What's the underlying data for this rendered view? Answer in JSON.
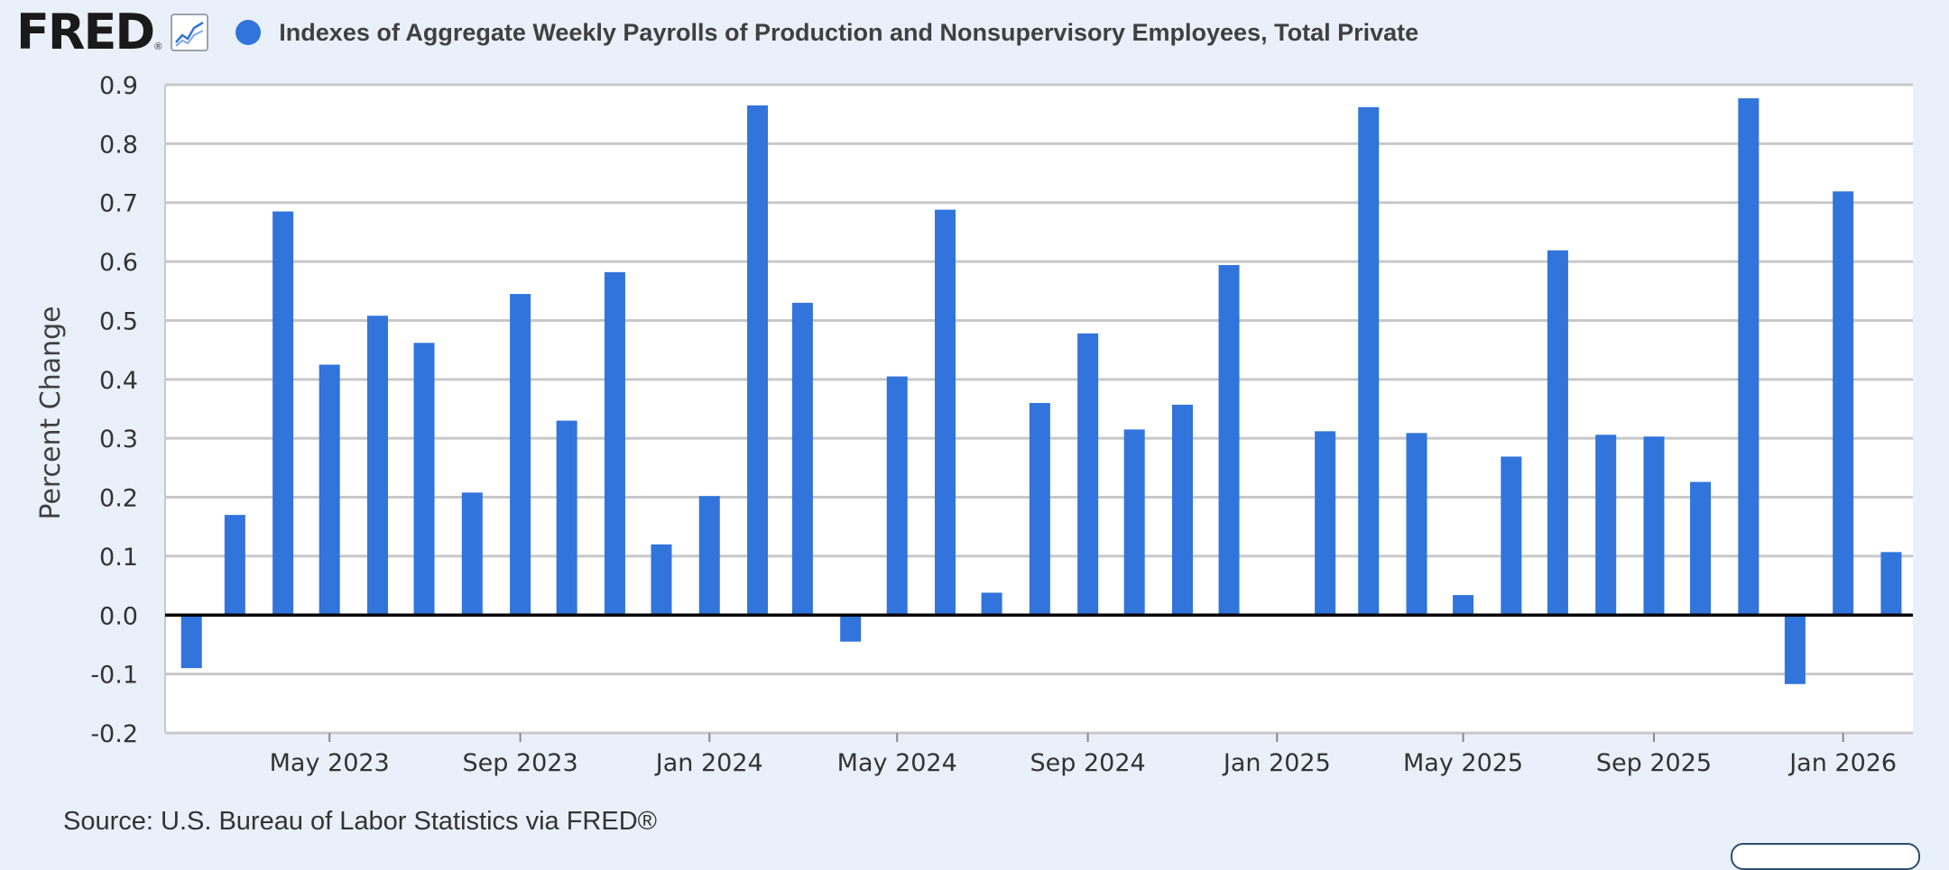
{
  "header": {
    "logo_text": "FRED",
    "logo_mark": "®",
    "graph_icon": "line-chart-icon",
    "legend_title": "Indexes of Aggregate Weekly Payrolls of Production and Nonsupervisory Employees, Total Private"
  },
  "source": "Source: U.S. Bureau of Labor Statistics via FRED®",
  "colors": {
    "bar": "#3174dc",
    "background": "#eaf0fa",
    "plot_background": "#ffffff",
    "grid": "#c8c8c8",
    "zero_line": "#000000"
  },
  "chart_data": {
    "type": "bar",
    "title": "Indexes of Aggregate Weekly Payrolls of Production and Nonsupervisory Employees, Total Private",
    "xlabel": "",
    "ylabel": "Percent Change",
    "ylim": [
      -0.2,
      0.9
    ],
    "yticks": [
      -0.2,
      -0.1,
      0.0,
      0.1,
      0.2,
      0.3,
      0.4,
      0.5,
      0.6,
      0.7,
      0.8,
      0.9
    ],
    "xtick_labels": [
      "May 2023",
      "Sep 2023",
      "Jan 2024",
      "May 2024",
      "Sep 2024",
      "Jan 2025",
      "May 2025",
      "Sep 2025",
      "Jan 2026"
    ],
    "xtick_dates": [
      "2023-05-01",
      "2023-09-01",
      "2024-01-01",
      "2024-05-01",
      "2024-09-01",
      "2025-01-01",
      "2025-05-01",
      "2025-09-01",
      "2026-01-01"
    ],
    "x_range": [
      "2023-01-15",
      "2026-02-15"
    ],
    "grid": true,
    "legend": "top-left",
    "x": [
      "2023-02-01",
      "2023-03-01",
      "2023-04-01",
      "2023-05-01",
      "2023-06-01",
      "2023-07-01",
      "2023-08-01",
      "2023-09-01",
      "2023-10-01",
      "2023-11-01",
      "2023-12-01",
      "2024-01-01",
      "2024-02-01",
      "2024-03-01",
      "2024-04-01",
      "2024-05-01",
      "2024-06-01",
      "2024-07-01",
      "2024-08-01",
      "2024-09-01",
      "2024-10-01",
      "2024-11-01",
      "2024-12-01",
      "2025-01-01",
      "2025-02-01",
      "2025-03-01",
      "2025-04-01",
      "2025-05-01",
      "2025-06-01",
      "2025-07-01",
      "2025-08-01",
      "2025-09-01",
      "2025-10-01",
      "2025-11-01",
      "2025-12-01",
      "2026-01-01",
      "2026-02-01"
    ],
    "series": [
      {
        "name": "Indexes of Aggregate Weekly Payrolls of Production and Nonsupervisory Employees, Total Private",
        "values": [
          -0.09,
          0.17,
          0.685,
          0.425,
          0.508,
          0.462,
          0.208,
          0.545,
          0.33,
          0.582,
          0.12,
          0.202,
          0.865,
          0.53,
          -0.045,
          0.405,
          0.688,
          0.038,
          0.36,
          0.478,
          0.315,
          0.357,
          0.594,
          null,
          0.312,
          0.862,
          0.309,
          0.034,
          0.269,
          0.619,
          0.306,
          0.303,
          0.226,
          0.877,
          -0.117,
          0.719,
          0.107
        ]
      }
    ]
  }
}
